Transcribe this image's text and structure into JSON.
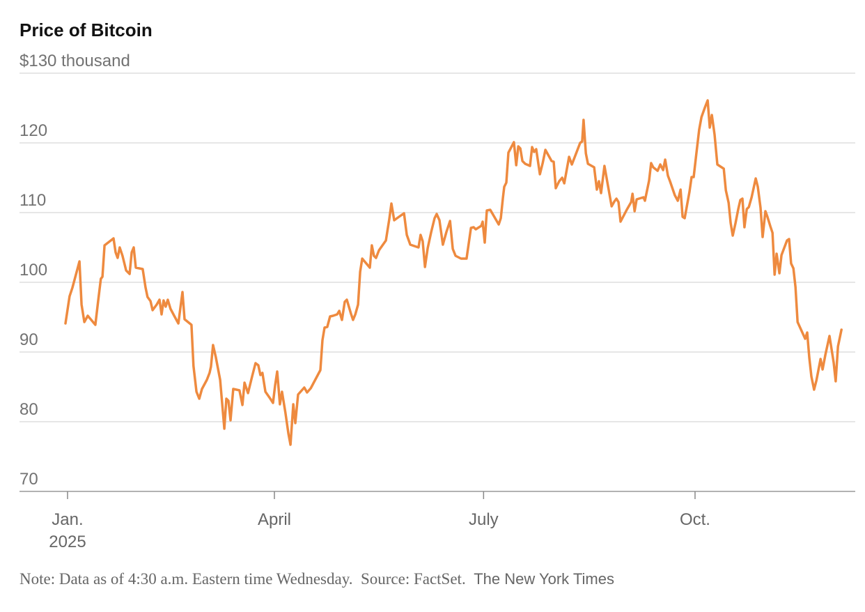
{
  "chart_data": {
    "type": "line",
    "title": "Price of Bitcoin",
    "note": "Note: Data as of 4:30 a.m. Eastern time Wednesday.",
    "source": "Source: FactSet.",
    "credit": "The New York Times",
    "xlim": [
      -20.9,
      342.7
    ],
    "xticks": [
      {
        "value": 0,
        "label": "Jan.\n2025"
      },
      {
        "value": 90,
        "label": "April"
      },
      {
        "value": 181,
        "label": "July"
      },
      {
        "value": 273,
        "label": "Oct."
      }
    ],
    "ylim": [
      70,
      130
    ],
    "yticks": [
      70,
      80,
      90,
      100,
      110,
      120,
      {
        "value": 130,
        "label": "$130 thousand"
      }
    ],
    "grid": true,
    "x": [
      -0.9,
      0.9,
      2.1,
      5.2,
      6.1,
      7.3,
      8.8,
      12.1,
      13.3,
      14.5,
      15.2,
      16.1,
      20,
      20.9,
      21.8,
      22.7,
      23.9,
      25.5,
      27,
      27.9,
      28.8,
      29.7,
      32.7,
      33.9,
      34.8,
      36.1,
      37,
      38.8,
      40,
      40.9,
      41.8,
      42.7,
      43.6,
      44.8,
      46.4,
      48.2,
      50,
      50.9,
      53.9,
      54.8,
      56.1,
      57.3,
      58.5,
      60.6,
      61.8,
      62.4,
      63.3,
      64.5,
      66.4,
      68.2,
      69.1,
      70,
      70.9,
      72.1,
      74.8,
      76.1,
      77,
      78.5,
      80.3,
      81.8,
      83,
      83.9,
      84.8,
      86.1,
      88.2,
      89.4,
      90.3,
      91.2,
      92.4,
      93.3,
      94.8,
      96.1,
      97,
      98.2,
      99.1,
      100.3,
      103,
      104.2,
      105.8,
      110,
      110.9,
      111.8,
      113,
      114.2,
      115.5,
      117.3,
      118.2,
      119.4,
      120.6,
      121.5,
      123.3,
      124.2,
      125.2,
      126.4,
      127.3,
      128.2,
      131.5,
      132.4,
      133.3,
      134.2,
      135.5,
      138.5,
      140,
      140.9,
      142.1,
      144.2,
      146.4,
      147.6,
      149.1,
      152.7,
      153.6,
      154.5,
      155.5,
      156.7,
      158.2,
      159.7,
      160.6,
      161.8,
      163.3,
      164.8,
      166.4,
      167.6,
      168.8,
      171.2,
      173.6,
      175.5,
      176.7,
      177.6,
      180,
      180.6,
      181.5,
      182.4,
      183.9,
      187.6,
      188.5,
      189.4,
      190,
      190.9,
      191.8,
      194.2,
      195.2,
      196.1,
      197,
      197.9,
      199.1,
      201.2,
      202.1,
      203,
      203.9,
      205.5,
      206.7,
      207.9,
      210.6,
      211.5,
      212.4,
      213.9,
      215.2,
      216.1,
      218.2,
      219.4,
      223,
      223.9,
      224.5,
      225.5,
      226.4,
      229.1,
      230.3,
      231.2,
      232.1,
      233.6,
      236.7,
      237.9,
      238.8,
      239.7,
      240.6,
      243.3,
      245.2,
      245.8,
      246.7,
      247.6,
      250.6,
      251.2,
      253,
      253.9,
      254.8,
      256.7,
      257.9,
      259.1,
      260,
      261.2,
      262.1,
      264.2,
      265.5,
      266.7,
      267.6,
      268.5,
      270.6,
      271.5,
      272.4,
      273.6,
      274.8,
      275.8,
      277.3,
      278.5,
      279.4,
      280.3,
      281.5,
      282.7,
      285.5,
      286.4,
      287.6,
      288.5,
      289.4,
      290.6,
      291.8,
      292.7,
      293.6,
      294.5,
      295.5,
      296.4,
      297.6,
      299.4,
      300.3,
      301.5,
      302.4,
      303.6,
      304.5,
      305.8,
      306.7,
      307.6,
      308.5,
      309.7,
      310.6,
      313,
      313.9,
      314.8,
      315.8,
      316.7,
      317.6,
      320.9,
      321.8,
      322.7,
      323.6,
      324.8,
      325.8,
      327.6,
      328.5,
      329.7,
      331.5,
      333.3,
      334.2,
      335.2,
      336.7
    ],
    "series": [
      {
        "color": "#ee8a3f",
        "values": [
          94.1,
          98,
          99.2,
          103,
          96.8,
          94.3,
          95.2,
          93.9,
          97.3,
          100.5,
          100.8,
          105.3,
          106.3,
          104.3,
          103.5,
          105,
          103.8,
          101.7,
          101.2,
          104.3,
          105,
          102.1,
          101.9,
          99.3,
          97.9,
          97.3,
          96,
          96.8,
          97.5,
          95.4,
          97.4,
          96.5,
          97.5,
          96.2,
          95.2,
          94.1,
          98.6,
          94.7,
          93.9,
          88,
          84.3,
          83.3,
          84.7,
          86,
          87,
          87.9,
          91,
          89.3,
          86,
          79,
          83.3,
          83,
          80.2,
          84.7,
          84.5,
          82.4,
          85.6,
          84.1,
          86.5,
          88.4,
          88.1,
          86.7,
          87,
          84.3,
          83.3,
          82.7,
          85.2,
          87.2,
          82.5,
          84.3,
          81.3,
          78.3,
          76.7,
          82.5,
          79.8,
          83.9,
          84.9,
          84.2,
          84.8,
          87.4,
          91.7,
          93.5,
          93.6,
          95.1,
          95.2,
          95.4,
          95.9,
          94.6,
          97.2,
          97.5,
          95.5,
          94.6,
          95.4,
          96.8,
          101.5,
          103.4,
          102.1,
          105.3,
          103.8,
          103.5,
          104.6,
          106,
          109.1,
          111.3,
          108.9,
          109.4,
          109.9,
          106.8,
          105.4,
          105,
          106.8,
          105.9,
          102.2,
          104.9,
          107.2,
          109.2,
          109.8,
          108.9,
          105.4,
          107.2,
          108.8,
          104.8,
          103.8,
          103.4,
          103.4,
          107.8,
          107.9,
          107.6,
          108.1,
          108.7,
          105.7,
          110.3,
          110.4,
          108.3,
          109.2,
          112.1,
          113.7,
          114.3,
          118.6,
          120.1,
          116.8,
          119.5,
          119.2,
          117.4,
          117,
          116.7,
          119.4,
          118.7,
          119.1,
          115.5,
          117.1,
          119,
          117.4,
          117.3,
          113.5,
          114.5,
          115,
          114.2,
          118,
          116.9,
          120,
          120.2,
          123.3,
          118.5,
          117,
          116.5,
          113.3,
          114.5,
          112.8,
          116.7,
          110.9,
          111.6,
          112,
          111.5,
          108.7,
          110.4,
          111.5,
          112.7,
          110.2,
          111.9,
          112.2,
          111.7,
          114.6,
          117.1,
          116.5,
          116,
          116.9,
          116.1,
          117.6,
          115.3,
          114.5,
          112.5,
          111.7,
          113.3,
          109.4,
          109.2,
          113,
          115.1,
          115.1,
          118.5,
          121.9,
          123.7,
          125.1,
          126.1,
          122.2,
          124,
          121.2,
          116.9,
          116.3,
          113.2,
          111.4,
          108.5,
          106.7,
          108.5,
          110.5,
          111.8,
          112,
          107.9,
          110.5,
          110.8,
          112.2,
          114.9,
          113.7,
          110.7,
          106.5,
          110.2,
          109.4,
          108,
          107.1,
          101.1,
          104.1,
          101.3,
          103.9,
          106,
          106.2,
          102.7,
          102,
          99.3,
          94.3,
          91.9,
          92.8,
          89.2,
          86.5,
          84.6,
          85.9,
          89,
          87.5,
          89.6,
          92.3,
          88.5,
          85.8,
          90.8,
          93.2
        ]
      }
    ]
  }
}
